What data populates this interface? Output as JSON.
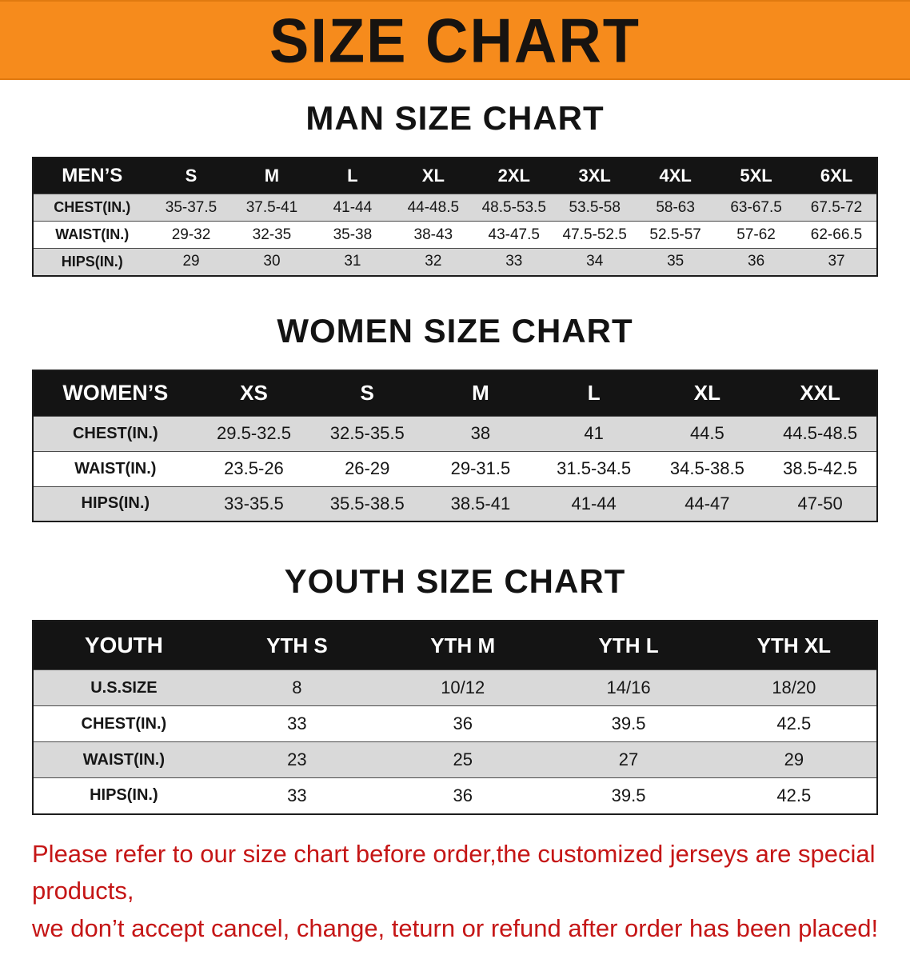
{
  "banner": {
    "title": "SIZE CHART"
  },
  "sections": [
    {
      "id": "men",
      "heading": "MAN SIZE CHART",
      "table": {
        "header": [
          "MEN’S",
          "S",
          "M",
          "L",
          "XL",
          "2XL",
          "3XL",
          "4XL",
          "5XL",
          "6XL"
        ],
        "rows": [
          [
            "CHEST(IN.)",
            "35-37.5",
            "37.5-41",
            "41-44",
            "44-48.5",
            "48.5-53.5",
            "53.5-58",
            "58-63",
            "63-67.5",
            "67.5-72"
          ],
          [
            "WAIST(IN.)",
            "29-32",
            "32-35",
            "35-38",
            "38-43",
            "43-47.5",
            "47.5-52.5",
            "52.5-57",
            "57-62",
            "62-66.5"
          ],
          [
            "HIPS(IN.)",
            "29",
            "30",
            "31",
            "32",
            "33",
            "34",
            "35",
            "36",
            "37"
          ]
        ]
      }
    },
    {
      "id": "women",
      "heading": "WOMEN SIZE CHART",
      "table": {
        "header": [
          "WOMEN’S",
          "XS",
          "S",
          "M",
          "L",
          "XL",
          "XXL"
        ],
        "rows": [
          [
            "CHEST(IN.)",
            "29.5-32.5",
            "32.5-35.5",
            "38",
            "41",
            "44.5",
            "44.5-48.5"
          ],
          [
            "WAIST(IN.)",
            "23.5-26",
            "26-29",
            "29-31.5",
            "31.5-34.5",
            "34.5-38.5",
            "38.5-42.5"
          ],
          [
            "HIPS(IN.)",
            "33-35.5",
            "35.5-38.5",
            "38.5-41",
            "41-44",
            "44-47",
            "47-50"
          ]
        ]
      }
    },
    {
      "id": "youth",
      "heading": "YOUTH SIZE CHART",
      "table": {
        "header": [
          "YOUTH",
          "YTH S",
          "YTH M",
          "YTH L",
          "YTH XL"
        ],
        "rows": [
          [
            "U.S.SIZE",
            "8",
            "10/12",
            "14/16",
            "18/20"
          ],
          [
            "CHEST(IN.)",
            "33",
            "36",
            "39.5",
            "42.5"
          ],
          [
            "WAIST(IN.)",
            "23",
            "25",
            "27",
            "29"
          ],
          [
            "HIPS(IN.)",
            "33",
            "36",
            "39.5",
            "42.5"
          ]
        ]
      }
    }
  ],
  "footer": {
    "line1": "Please refer to our size chart before order,the customized jerseys are special products,",
    "line2": "we don’t accept cancel, change, teturn or refund after order has been placed!"
  },
  "colors": {
    "banner_orange": "#f68b1c",
    "table_header_black": "#141414",
    "row_gray": "#d9d9d9",
    "notice_red": "#c51616"
  }
}
